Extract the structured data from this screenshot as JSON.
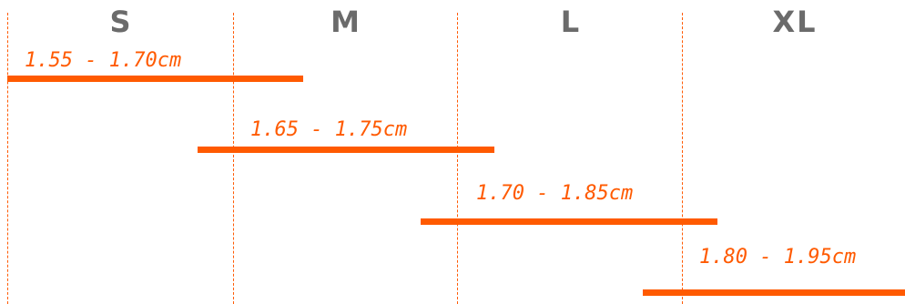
{
  "sizes": [
    {
      "label": "S"
    },
    {
      "label": "M"
    },
    {
      "label": "L"
    },
    {
      "label": "XL"
    }
  ],
  "ranges": [
    {
      "label": "1.55 - 1.70cm",
      "size": "S"
    },
    {
      "label": "1.65 - 1.75cm",
      "size": "M"
    },
    {
      "label": "1.70 - 1.85cm",
      "size": "L"
    },
    {
      "label": "1.80 - 1.95cm",
      "size": "XL"
    }
  ],
  "colors": {
    "accent": "#ff5a00",
    "size_label": "#6b6b6b",
    "background": "#ffffff"
  }
}
